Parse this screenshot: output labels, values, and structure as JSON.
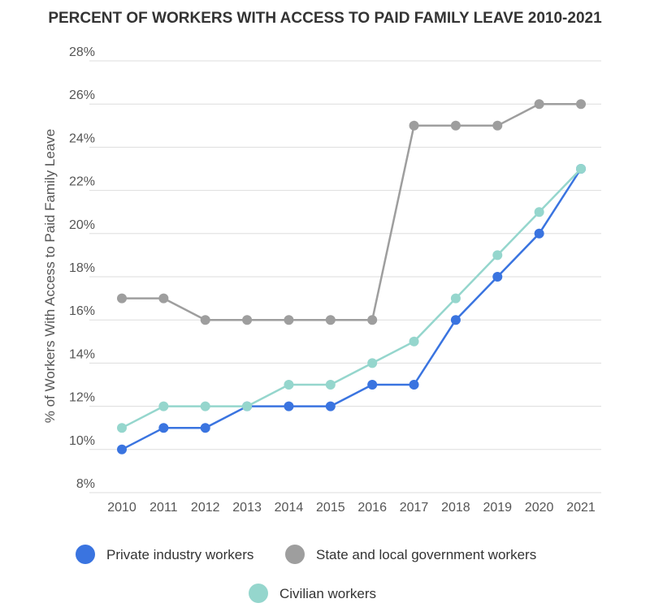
{
  "chart_data": {
    "type": "line",
    "title": "PERCENT OF WORKERS WITH ACCESS TO PAID FAMILY LEAVE 2010-2021",
    "xlabel": "",
    "ylabel": "% of Workers With Access to Paid Family Leave",
    "x": [
      "2010",
      "2011",
      "2012",
      "2013",
      "2014",
      "2015",
      "2016",
      "2017",
      "2018",
      "2019",
      "2020",
      "2021"
    ],
    "ylim": [
      8,
      28
    ],
    "yticks": [
      "8%",
      "10%",
      "12%",
      "14%",
      "16%",
      "18%",
      "20%",
      "22%",
      "24%",
      "26%",
      "28%"
    ],
    "grid": true,
    "legend_placement": "bottom",
    "series": [
      {
        "name": "Private industry workers",
        "color": "#3a74e0",
        "values": [
          10,
          11,
          11,
          12,
          12,
          12,
          13,
          13,
          16,
          18,
          20,
          23
        ]
      },
      {
        "name": "State and local government workers",
        "color": "#9e9e9e",
        "values": [
          17,
          17,
          16,
          16,
          16,
          16,
          16,
          25,
          25,
          25,
          26,
          26
        ]
      },
      {
        "name": "Civilian workers",
        "color": "#95d6cd",
        "values": [
          11,
          12,
          12,
          12,
          13,
          13,
          14,
          15,
          17,
          19,
          21,
          23
        ]
      }
    ]
  }
}
